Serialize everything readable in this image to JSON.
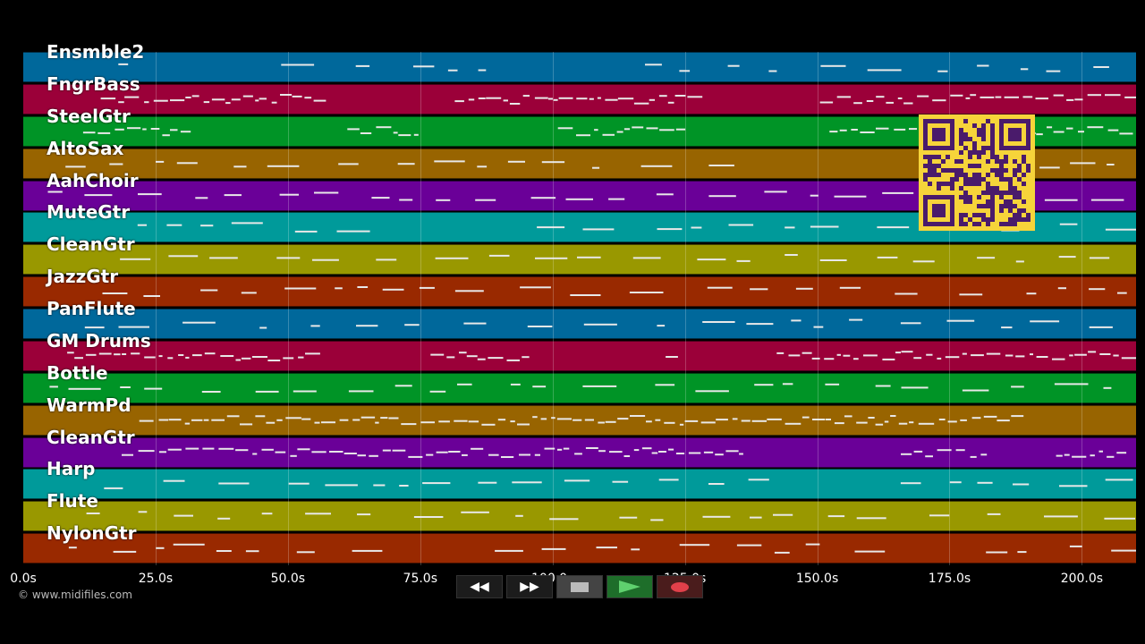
{
  "colors": {
    "track_palette": [
      "#00689b",
      "#9b0039",
      "#009426",
      "#986400",
      "#6a0098",
      "#009a9a",
      "#999800",
      "#992900"
    ],
    "note": "#e8e8e8",
    "qr_bg": "#f6d43a",
    "qr_fg": "#4a1b6b"
  },
  "tracks": [
    {
      "name": "Ensmble2"
    },
    {
      "name": "FngrBass"
    },
    {
      "name": "SteelGtr"
    },
    {
      "name": "AltoSax"
    },
    {
      "name": "AahChoir"
    },
    {
      "name": "MuteGtr"
    },
    {
      "name": "CleanGtr"
    },
    {
      "name": "JazzGtr"
    },
    {
      "name": "PanFlute"
    },
    {
      "name": "GM Drums"
    },
    {
      "name": "Bottle"
    },
    {
      "name": "WarmPd"
    },
    {
      "name": "CleanGtr"
    },
    {
      "name": "Harp"
    },
    {
      "name": "Flute"
    },
    {
      "name": "NylonGtr"
    }
  ],
  "timeline": {
    "ticks": [
      "0.0s",
      "25.0s",
      "50.0s",
      "75.0s",
      "100.0s",
      "125.0s",
      "150.0s",
      "175.0s",
      "200.0s"
    ]
  },
  "copyright": "© www.midifiles.com",
  "transport": {
    "rewind": "◀◀",
    "forward": "▶▶",
    "stop_icon": "stop-icon",
    "play_icon": "play-icon",
    "record_icon": "record-icon"
  },
  "qr_icon": "qr-code-icon"
}
